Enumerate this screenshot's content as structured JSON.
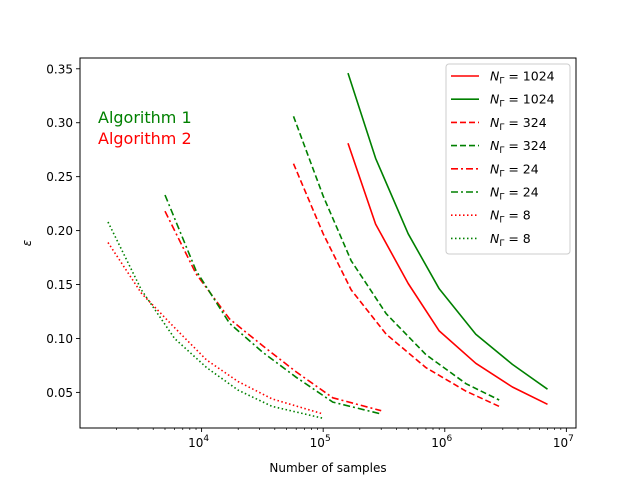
{
  "chart_data": {
    "type": "line",
    "title": "",
    "xlabel": "Number of samples",
    "ylabel": "ε",
    "x_scale": "log",
    "xlim": [
      1000,
      12000000
    ],
    "ylim": [
      0.017,
      0.36
    ],
    "x_ticks": [
      {
        "value": 10000,
        "base": "10",
        "exp": "4"
      },
      {
        "value": 100000,
        "base": "10",
        "exp": "5"
      },
      {
        "value": 1000000,
        "base": "10",
        "exp": "6"
      },
      {
        "value": 10000000,
        "base": "10",
        "exp": "7"
      }
    ],
    "y_ticks": [
      0.05,
      0.1,
      0.15,
      0.2,
      0.25,
      0.3,
      0.35
    ],
    "y_tick_labels": [
      "0.05",
      "0.10",
      "0.15",
      "0.20",
      "0.25",
      "0.30",
      "0.35"
    ],
    "grid": false,
    "legend_position": "top-right",
    "annotations": [
      {
        "text": "Algorithm 1",
        "color": "#008000"
      },
      {
        "text": "Algorithm 2",
        "color": "#ff0000"
      }
    ],
    "series": [
      {
        "name": "N_Γ = 1024",
        "label_base": "N",
        "label_sub": "Γ",
        "label_rest": " = 1024",
        "color": "#ff0000",
        "dash": "solid",
        "x": [
          160000,
          270000,
          500000,
          900000,
          1800000,
          3600000,
          7000000
        ],
        "y": [
          0.281,
          0.206,
          0.151,
          0.107,
          0.077,
          0.055,
          0.039
        ]
      },
      {
        "name": "N_Γ = 1024",
        "label_base": "N",
        "label_sub": "Γ",
        "label_rest": " = 1024",
        "color": "#008000",
        "dash": "solid",
        "x": [
          160000,
          270000,
          500000,
          900000,
          1800000,
          3600000,
          7000000
        ],
        "y": [
          0.346,
          0.267,
          0.197,
          0.146,
          0.104,
          0.076,
          0.053
        ]
      },
      {
        "name": "N_Γ = 324",
        "label_base": "N",
        "label_sub": "Γ",
        "label_rest": " = 324",
        "color": "#ff0000",
        "dash": "dashed",
        "x": [
          57000,
          100000,
          170000,
          330000,
          700000,
          1500000,
          2800000
        ],
        "y": [
          0.262,
          0.197,
          0.145,
          0.104,
          0.073,
          0.051,
          0.037
        ]
      },
      {
        "name": "N_Γ = 324",
        "label_base": "N",
        "label_sub": "Γ",
        "label_rest": " = 324",
        "color": "#008000",
        "dash": "dashed",
        "x": [
          57000,
          100000,
          170000,
          330000,
          700000,
          1500000,
          2800000
        ],
        "y": [
          0.306,
          0.232,
          0.172,
          0.123,
          0.085,
          0.058,
          0.043
        ]
      },
      {
        "name": "N_Γ = 24",
        "label_base": "N",
        "label_sub": "Γ",
        "label_rest": " = 24",
        "color": "#ff0000",
        "dash": "dashdot",
        "x": [
          5000,
          9000,
          17000,
          32000,
          60000,
          120000,
          300000
        ],
        "y": [
          0.218,
          0.16,
          0.118,
          0.093,
          0.069,
          0.045,
          0.033
        ]
      },
      {
        "name": "N_Γ = 24",
        "label_base": "N",
        "label_sub": "Γ",
        "label_rest": " = 24",
        "color": "#008000",
        "dash": "dashdot",
        "x": [
          5000,
          9000,
          17000,
          32000,
          60000,
          120000,
          300000
        ],
        "y": [
          0.233,
          0.163,
          0.114,
          0.087,
          0.064,
          0.041,
          0.03
        ]
      },
      {
        "name": "N_Γ = 8",
        "label_base": "N",
        "label_sub": "Γ",
        "label_rest": " = 8",
        "color": "#ff0000",
        "dash": "dotted",
        "x": [
          1700,
          3200,
          6000,
          11000,
          20000,
          38000,
          100000
        ],
        "y": [
          0.189,
          0.142,
          0.11,
          0.08,
          0.06,
          0.044,
          0.03
        ]
      },
      {
        "name": "N_Γ = 8",
        "label_base": "N",
        "label_sub": "Γ",
        "label_rest": " = 8",
        "color": "#008000",
        "dash": "dotted",
        "x": [
          1700,
          3200,
          6000,
          11000,
          20000,
          38000,
          100000
        ],
        "y": [
          0.208,
          0.145,
          0.1,
          0.073,
          0.052,
          0.037,
          0.026
        ]
      }
    ]
  }
}
